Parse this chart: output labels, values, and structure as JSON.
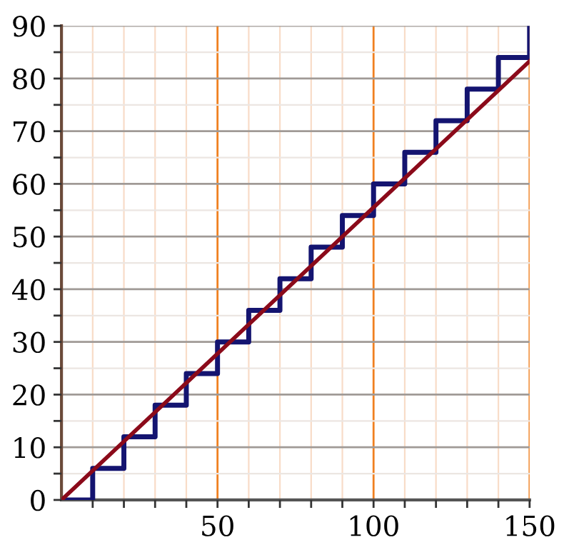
{
  "chart_data": {
    "type": "line",
    "series": [
      {
        "type": "step",
        "color": "#141470",
        "x": [
          0,
          10,
          20,
          30,
          40,
          50,
          60,
          70,
          80,
          90,
          100,
          110,
          120,
          130,
          140,
          150
        ],
        "values": [
          0,
          6,
          12,
          18,
          24,
          30,
          36,
          42,
          48,
          54,
          60,
          66,
          72,
          78,
          84,
          90
        ]
      },
      {
        "color": "#8b0a1a",
        "x": [
          0,
          150
        ],
        "values": [
          0,
          83.3
        ]
      }
    ],
    "xlim": [
      0,
      150
    ],
    "ylim": [
      0,
      90
    ],
    "xticks": [
      {
        "value": 10,
        "label": null
      },
      {
        "value": 20,
        "label": null
      },
      {
        "value": 30,
        "label": null
      },
      {
        "value": 40,
        "label": null
      },
      50,
      {
        "value": 60,
        "label": null
      },
      {
        "value": 70,
        "label": null
      },
      {
        "value": 80,
        "label": null
      },
      {
        "value": 90,
        "label": null
      },
      100,
      {
        "value": 110,
        "label": null
      },
      {
        "value": 120,
        "label": null
      },
      {
        "value": 130,
        "label": null
      },
      {
        "value": 140,
        "label": null
      },
      150
    ],
    "yticks": [
      0,
      {
        "value": 5,
        "label": null
      },
      10,
      {
        "value": 15,
        "label": null
      },
      20,
      {
        "value": 25,
        "label": null
      },
      30,
      {
        "value": 35,
        "label": null
      },
      40,
      {
        "value": 45,
        "label": null
      },
      50,
      {
        "value": 55,
        "label": null
      },
      60,
      {
        "value": 65,
        "label": null
      },
      70,
      {
        "value": 75,
        "label": null
      },
      80,
      {
        "value": 85,
        "label": null
      },
      90
    ],
    "grid": true
  }
}
